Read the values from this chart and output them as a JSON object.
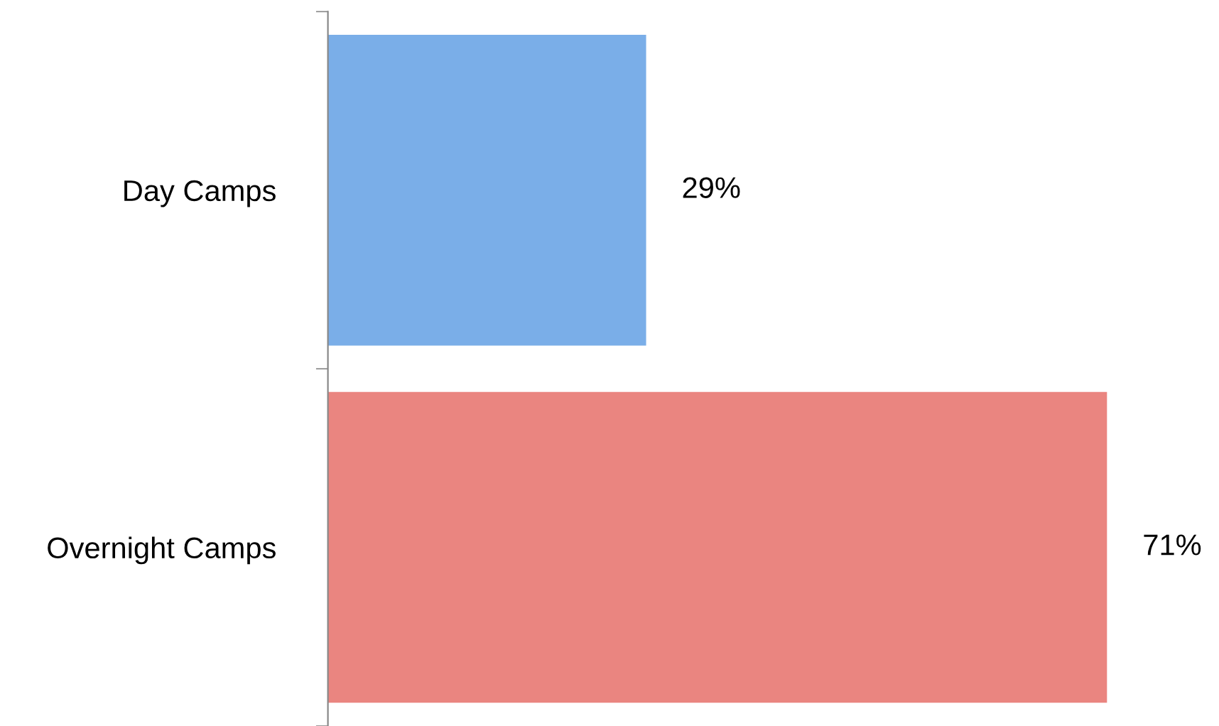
{
  "chart_data": {
    "type": "bar",
    "orientation": "horizontal",
    "categories": [
      "Day Camps",
      "Overnight Camps"
    ],
    "values": [
      29,
      71
    ],
    "colors": [
      "#7aaee8",
      "#ea8580"
    ],
    "value_labels": [
      "29%",
      "71%"
    ],
    "tick_labels": "y",
    "grid": false,
    "legend": false
  }
}
